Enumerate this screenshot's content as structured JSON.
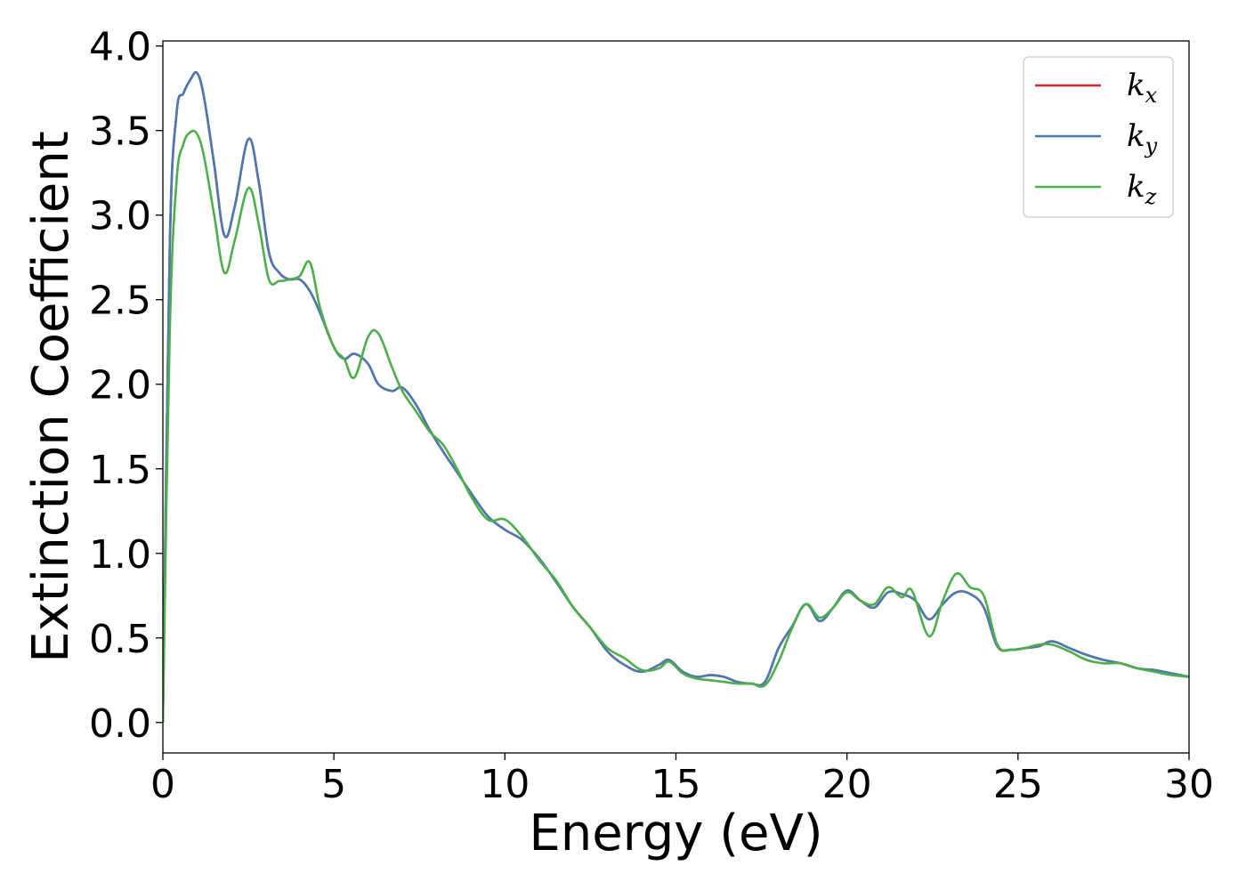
{
  "chart_data": {
    "type": "line",
    "xlabel": "Energy (eV)",
    "ylabel": "Extinction Coefficient",
    "xlim": [
      0,
      30
    ],
    "ylim": [
      -0.18,
      4.03
    ],
    "xticks": [
      0,
      5,
      10,
      15,
      20,
      25,
      30
    ],
    "xtick_labels": [
      "0",
      "5",
      "10",
      "15",
      "20",
      "25",
      "30"
    ],
    "yticks": [
      0.0,
      0.5,
      1.0,
      1.5,
      2.0,
      2.5,
      3.0,
      3.5,
      4.0
    ],
    "ytick_labels": [
      "0.0",
      "0.5",
      "1.0",
      "1.5",
      "2.0",
      "2.5",
      "3.0",
      "3.5",
      "4.0"
    ],
    "grid": false,
    "legend_position": "top-right",
    "series": [
      {
        "name": "k",
        "subscript": "x",
        "color": "#d62728",
        "x": [
          0,
          0.2,
          0.4,
          0.6,
          0.8,
          1.0,
          1.2,
          1.5,
          1.8,
          2.1,
          2.5,
          2.8,
          3.1,
          3.4,
          3.7,
          4.0,
          4.3,
          4.6,
          5.0,
          5.3,
          5.6,
          6.0,
          6.3,
          6.7,
          7.0,
          7.4,
          7.8,
          8.2,
          8.6,
          9.0,
          9.5,
          10.0,
          10.5,
          11.0,
          11.5,
          12.0,
          12.5,
          13.0,
          13.5,
          14.0,
          14.5,
          14.8,
          15.2,
          15.6,
          16.0,
          16.4,
          16.8,
          17.2,
          17.6,
          18.0,
          18.4,
          18.8,
          19.2,
          19.6,
          20.0,
          20.4,
          20.8,
          21.2,
          21.6,
          22.0,
          22.4,
          22.8,
          23.2,
          23.6,
          24.0,
          24.4,
          24.8,
          25.2,
          25.6,
          26.0,
          26.5,
          27.0,
          27.5,
          28.0,
          28.5,
          29.0,
          29.5,
          30.0
        ],
        "y": [
          0.0,
          2.8,
          3.6,
          3.72,
          3.8,
          3.84,
          3.7,
          3.3,
          2.88,
          3.05,
          3.45,
          3.2,
          2.78,
          2.66,
          2.62,
          2.62,
          2.55,
          2.42,
          2.22,
          2.15,
          2.18,
          2.12,
          2.0,
          1.96,
          1.98,
          1.88,
          1.73,
          1.6,
          1.48,
          1.36,
          1.22,
          1.14,
          1.08,
          0.97,
          0.83,
          0.68,
          0.56,
          0.42,
          0.34,
          0.3,
          0.34,
          0.37,
          0.3,
          0.27,
          0.28,
          0.27,
          0.24,
          0.23,
          0.24,
          0.44,
          0.57,
          0.7,
          0.6,
          0.68,
          0.78,
          0.72,
          0.68,
          0.77,
          0.76,
          0.72,
          0.61,
          0.7,
          0.77,
          0.76,
          0.68,
          0.45,
          0.43,
          0.44,
          0.45,
          0.48,
          0.44,
          0.4,
          0.37,
          0.35,
          0.32,
          0.31,
          0.29,
          0.27
        ]
      },
      {
        "name": "k",
        "subscript": "y",
        "color": "#4a7ab4",
        "x": [
          0,
          0.2,
          0.4,
          0.6,
          0.8,
          1.0,
          1.2,
          1.5,
          1.8,
          2.1,
          2.5,
          2.8,
          3.1,
          3.4,
          3.7,
          4.0,
          4.3,
          4.6,
          5.0,
          5.3,
          5.6,
          6.0,
          6.3,
          6.7,
          7.0,
          7.4,
          7.8,
          8.2,
          8.6,
          9.0,
          9.5,
          10.0,
          10.5,
          11.0,
          11.5,
          12.0,
          12.5,
          13.0,
          13.5,
          14.0,
          14.5,
          14.8,
          15.2,
          15.6,
          16.0,
          16.4,
          16.8,
          17.2,
          17.6,
          18.0,
          18.4,
          18.8,
          19.2,
          19.6,
          20.0,
          20.4,
          20.8,
          21.2,
          21.6,
          22.0,
          22.4,
          22.8,
          23.2,
          23.6,
          24.0,
          24.4,
          24.8,
          25.2,
          25.6,
          26.0,
          26.5,
          27.0,
          27.5,
          28.0,
          28.5,
          29.0,
          29.5,
          30.0
        ],
        "y": [
          0.0,
          2.8,
          3.6,
          3.72,
          3.8,
          3.84,
          3.7,
          3.3,
          2.88,
          3.05,
          3.45,
          3.2,
          2.78,
          2.66,
          2.62,
          2.62,
          2.55,
          2.42,
          2.22,
          2.15,
          2.18,
          2.12,
          2.0,
          1.96,
          1.98,
          1.88,
          1.73,
          1.6,
          1.48,
          1.36,
          1.22,
          1.14,
          1.08,
          0.97,
          0.83,
          0.68,
          0.56,
          0.42,
          0.34,
          0.3,
          0.34,
          0.37,
          0.3,
          0.27,
          0.28,
          0.27,
          0.24,
          0.23,
          0.24,
          0.44,
          0.57,
          0.7,
          0.6,
          0.68,
          0.78,
          0.72,
          0.68,
          0.77,
          0.76,
          0.72,
          0.61,
          0.7,
          0.77,
          0.76,
          0.68,
          0.45,
          0.43,
          0.44,
          0.45,
          0.48,
          0.44,
          0.4,
          0.37,
          0.35,
          0.32,
          0.31,
          0.29,
          0.27
        ]
      },
      {
        "name": "k",
        "subscript": "z",
        "color": "#4daf4a",
        "x": [
          0,
          0.2,
          0.4,
          0.6,
          0.8,
          1.0,
          1.2,
          1.5,
          1.8,
          2.1,
          2.5,
          2.8,
          3.1,
          3.4,
          3.7,
          4.0,
          4.3,
          4.6,
          5.0,
          5.3,
          5.6,
          6.0,
          6.3,
          6.7,
          7.0,
          7.4,
          7.8,
          8.2,
          8.6,
          9.0,
          9.5,
          10.0,
          10.5,
          11.0,
          11.5,
          12.0,
          12.5,
          13.0,
          13.5,
          14.0,
          14.5,
          14.8,
          15.2,
          15.6,
          16.0,
          16.4,
          16.8,
          17.2,
          17.6,
          18.0,
          18.4,
          18.8,
          19.2,
          19.6,
          20.0,
          20.4,
          20.8,
          21.2,
          21.6,
          21.9,
          22.4,
          22.8,
          23.2,
          23.6,
          24.0,
          24.4,
          24.8,
          25.2,
          25.6,
          26.0,
          26.5,
          27.0,
          27.5,
          28.0,
          28.5,
          29.0,
          29.5,
          30.0
        ],
        "y": [
          0.0,
          2.3,
          3.2,
          3.42,
          3.49,
          3.48,
          3.35,
          3.0,
          2.66,
          2.85,
          3.16,
          2.95,
          2.62,
          2.61,
          2.62,
          2.64,
          2.72,
          2.45,
          2.22,
          2.15,
          2.04,
          2.28,
          2.3,
          2.1,
          1.96,
          1.84,
          1.72,
          1.64,
          1.5,
          1.34,
          1.2,
          1.2,
          1.1,
          0.96,
          0.84,
          0.68,
          0.56,
          0.44,
          0.38,
          0.31,
          0.32,
          0.36,
          0.29,
          0.26,
          0.25,
          0.24,
          0.23,
          0.23,
          0.22,
          0.36,
          0.56,
          0.7,
          0.62,
          0.68,
          0.77,
          0.72,
          0.7,
          0.8,
          0.74,
          0.78,
          0.51,
          0.72,
          0.88,
          0.8,
          0.75,
          0.46,
          0.43,
          0.44,
          0.46,
          0.46,
          0.42,
          0.37,
          0.35,
          0.35,
          0.32,
          0.3,
          0.28,
          0.27
        ]
      }
    ]
  }
}
